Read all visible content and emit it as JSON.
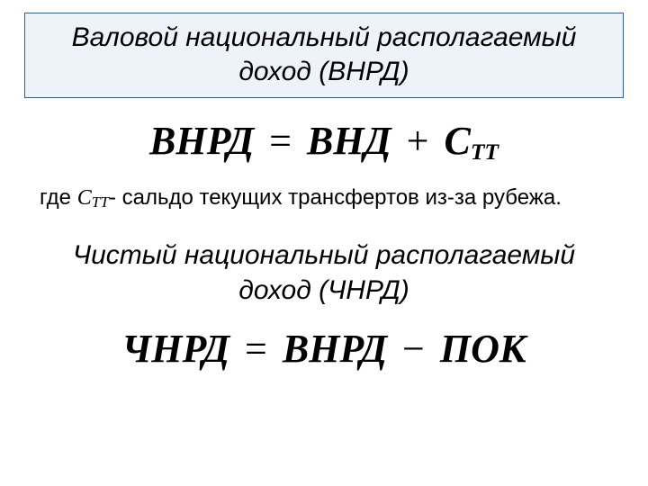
{
  "background_color": "#ffffff",
  "text_color": "#000000",
  "title": {
    "text": "Валовой национальный располагаемый доход (ВНРД)",
    "border_color": "#385d8a",
    "fill_color": "#eef3f9",
    "font_style": "italic",
    "font_size_pt": 22
  },
  "formula1": {
    "lhs": "ВНРД",
    "rhs_term1": "ВНД",
    "op": "+",
    "rhs_term2_base": "С",
    "rhs_term2_sub": "ТТ",
    "eq": "=",
    "font_family": "Times New Roman",
    "font_style": "bold italic",
    "font_size_pt": 33
  },
  "explain": {
    "prefix": "где ",
    "var_base": "С",
    "var_sub": "ТТ",
    "rest": "- сальдо текущих трансфертов из-за рубежа.",
    "font_size_pt": 18
  },
  "subtitle": {
    "text": "Чистый национальный располагаемый доход (ЧНРД)",
    "font_style": "italic",
    "font_size_pt": 22
  },
  "formula2": {
    "lhs": "ЧНРД",
    "rhs_term1": "ВНРД",
    "op": "−",
    "rhs_term2": "ПОК",
    "eq": "=",
    "font_family": "Times New Roman",
    "font_style": "bold italic",
    "font_size_pt": 33
  }
}
